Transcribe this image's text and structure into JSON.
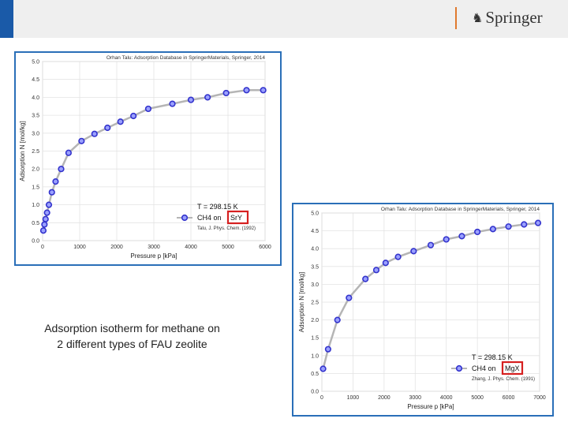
{
  "header": {
    "accent_color": "#1a5aa8",
    "brand_icon": "springer-horse-logo-icon",
    "brand_name": "Springer"
  },
  "caption": {
    "line1": "Adsorption isotherm for methane on",
    "line2": "2 different types of FAU zeolite"
  },
  "chart_data": [
    {
      "type": "line",
      "source_text": "Orhan Talu: Adsorption Database in SpringerMaterials, Springer, 2014",
      "xlabel": "Pressure p [kPa]",
      "ylabel": "Adsorption N [mol/kg]",
      "xlim": [
        0,
        6000
      ],
      "ylim": [
        0,
        5
      ],
      "xticks": [
        "0",
        "1000",
        "2000",
        "3000",
        "4000",
        "5000",
        "6000"
      ],
      "yticks": [
        "0.0",
        "0.5",
        "1.0",
        "1.5",
        "2.0",
        "2.5",
        "3.0",
        "3.5",
        "4.0",
        "4.5",
        "5.0"
      ],
      "grid": true,
      "legend": {
        "temp": "T = 298.15 K",
        "series_prefix": "CH4 on",
        "material": "SrY",
        "ref": "Talu, J. Phys. Chem. (1992)",
        "position": "bottom-right"
      },
      "series": [
        {
          "name": "CH4 on SrY",
          "color": "#3333cc",
          "x": [
            20,
            50,
            80,
            120,
            170,
            250,
            350,
            500,
            700,
            1050,
            1400,
            1750,
            2100,
            2450,
            2850,
            3500,
            4000,
            4450,
            4950,
            5500,
            5950
          ],
          "y": [
            0.28,
            0.45,
            0.6,
            0.78,
            1.0,
            1.35,
            1.65,
            2.0,
            2.45,
            2.78,
            2.98,
            3.15,
            3.32,
            3.48,
            3.68,
            3.82,
            3.93,
            4.0,
            4.12,
            4.2,
            4.2
          ]
        }
      ]
    },
    {
      "type": "line",
      "source_text": "Orhan Talu: Adsorption Database in SpringerMaterials, Springer, 2014",
      "xlabel": "Pressure p [kPa]",
      "ylabel": "Adsorption N [mol/kg]",
      "xlim": [
        0,
        7000
      ],
      "ylim": [
        0,
        5
      ],
      "xticks": [
        "0",
        "1000",
        "2000",
        "3000",
        "4000",
        "5000",
        "6000",
        "7000"
      ],
      "yticks": [
        "0.0",
        "0.5",
        "1.0",
        "1.5",
        "2.0",
        "2.5",
        "3.0",
        "3.5",
        "4.0",
        "4.5",
        "5.0"
      ],
      "grid": true,
      "legend": {
        "temp": "T = 298.15 K",
        "series_prefix": "CH4 on",
        "material": "MgX",
        "ref": "Zhang, J. Phys. Chem. (1991)",
        "position": "bottom-right"
      },
      "series": [
        {
          "name": "CH4 on MgX",
          "color": "#3333cc",
          "x": [
            40,
            200,
            500,
            870,
            1400,
            1750,
            2050,
            2450,
            2950,
            3500,
            4000,
            4500,
            5000,
            5500,
            6000,
            6500,
            6950
          ],
          "y": [
            0.63,
            1.18,
            2.0,
            2.62,
            3.15,
            3.4,
            3.6,
            3.77,
            3.93,
            4.1,
            4.26,
            4.35,
            4.47,
            4.55,
            4.62,
            4.68,
            4.72
          ]
        }
      ]
    }
  ]
}
